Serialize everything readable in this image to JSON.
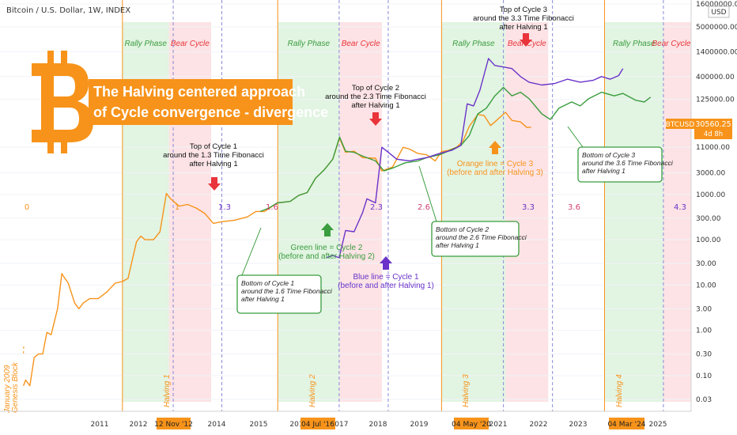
{
  "title": "Bitcoin / U.S. Dollar, 1W, INDEX",
  "headline": [
    "The Halving centered approach",
    "of Cycle convergence - divergence"
  ],
  "currency": "USD",
  "symbol": "BTCUSD",
  "last_price": "30560.25",
  "countdown": "4d 8h",
  "colors": {
    "orange": "#f7931a",
    "green": "#3a9d3f",
    "purple": "#6a32c9",
    "red": "#e8343a",
    "rally_bg": "#e2f4e2",
    "bear_bg": "#fde3e5"
  },
  "x_ticks": [
    "2011",
    "2012",
    "2014",
    "2015",
    "201",
    "2017",
    "2018",
    "2019",
    "2021",
    "2022",
    "2023",
    "2025"
  ],
  "halving_dates": [
    "12 Nov '12",
    "04 Jul '16",
    "04 May '20",
    "04 Mar '24"
  ],
  "halving_labels": [
    "Halving 1",
    "Halving 2",
    "Halving 3",
    "Halving 4"
  ],
  "genesis_label": [
    "January 2009",
    "Genesis Block"
  ],
  "phases": {
    "rally": "Rally Phase",
    "bear": "Bear Cycle"
  },
  "fib_labels": [
    "0",
    "1",
    "1.3",
    "1.6",
    "2.3",
    "2.6",
    "3.3",
    "3.6",
    "4.3"
  ],
  "annotations": {
    "top1": [
      "Top of Cycle 1",
      "around the 1.3 Time Fibonacci",
      "after Halving 1"
    ],
    "top2": [
      "Top of Cycle 2",
      "around the 2.3 Time Fibonacci",
      "after Halving 1"
    ],
    "top3": [
      "Top of Cycle 3",
      "around the 3.3 Time Fibonacci",
      "after Halving 1"
    ],
    "bottom1": [
      "Bottom of Cycle 1",
      "around the 1.6 Time Fibonacci",
      "after Halving 1"
    ],
    "bottom2": [
      "Bottom of Cycle 2",
      "around the 2.6 Time Fibonacci",
      "after Halving 1"
    ],
    "bottom3": [
      "Bottom of Cycle 3",
      "around the 3.6 Time Fibonacci",
      "after Halving 1"
    ],
    "green_line": [
      "Green line = Cycle 2",
      "(before and after Halving 2)"
    ],
    "blue_line": [
      "Blue line = Cycle 1",
      "(before and after Halving 1)"
    ],
    "orange_line": [
      "Orange line = Cycle 3",
      "(before and after Halving 3)"
    ]
  },
  "chart_data": {
    "type": "line",
    "title": "Bitcoin / U.S. Dollar, 1W, INDEX",
    "y_scale": "log",
    "ylim": [
      0.02,
      16000000
    ],
    "xlim": [
      2010.0,
      2026.2
    ],
    "y_ticks": [
      "16000000.00",
      "5000000.00",
      "1400000.00",
      "400000.00",
      "125000.00",
      "11000.00",
      "3000.00",
      "1000.00",
      "300.00",
      "100.00",
      "30.00",
      "10.00",
      "3.00",
      "1.00",
      "0.30",
      "0.10",
      "0.03"
    ],
    "series": [
      {
        "name": "Cycle 3",
        "color": "#f7931a",
        "points": [
          [
            2010.55,
            0.06
          ],
          [
            2010.6,
            0.08
          ],
          [
            2010.7,
            0.06
          ],
          [
            2010.8,
            0.25
          ],
          [
            2010.9,
            0.3
          ],
          [
            2011.0,
            0.3
          ],
          [
            2011.1,
            0.9
          ],
          [
            2011.2,
            0.8
          ],
          [
            2011.35,
            3
          ],
          [
            2011.45,
            18
          ],
          [
            2011.5,
            15
          ],
          [
            2011.6,
            11
          ],
          [
            2011.75,
            4
          ],
          [
            2011.85,
            3
          ],
          [
            2011.95,
            4
          ],
          [
            2012.1,
            5
          ],
          [
            2012.3,
            5
          ],
          [
            2012.5,
            7
          ],
          [
            2012.7,
            11
          ],
          [
            2012.87,
            12
          ],
          [
            2013.0,
            14
          ],
          [
            2013.2,
            90
          ],
          [
            2013.3,
            120
          ],
          [
            2013.4,
            100
          ],
          [
            2013.6,
            100
          ],
          [
            2013.75,
            150
          ],
          [
            2013.9,
            1050
          ],
          [
            2014.0,
            800
          ],
          [
            2014.2,
            550
          ],
          [
            2014.4,
            600
          ],
          [
            2014.6,
            500
          ],
          [
            2014.8,
            380
          ],
          [
            2015.0,
            230
          ],
          [
            2015.2,
            250
          ],
          [
            2015.5,
            270
          ],
          [
            2015.8,
            320
          ],
          [
            2016.0,
            420
          ],
          [
            2016.2,
            420
          ],
          [
            2016.5,
            650
          ],
          [
            2016.8,
            700
          ],
          [
            2017.0,
            950
          ],
          [
            2017.2,
            1100
          ],
          [
            2017.4,
            2300
          ],
          [
            2017.6,
            3500
          ],
          [
            2017.8,
            6000
          ],
          [
            2017.96,
            17500
          ],
          [
            2018.1,
            8500
          ],
          [
            2018.3,
            9000
          ],
          [
            2018.5,
            6500
          ],
          [
            2018.8,
            6300
          ],
          [
            2018.95,
            3300
          ],
          [
            2019.2,
            4000
          ],
          [
            2019.45,
            11000
          ],
          [
            2019.6,
            10000
          ],
          [
            2019.8,
            8000
          ],
          [
            2020.0,
            7500
          ],
          [
            2020.2,
            5500
          ],
          [
            2020.35,
            8800
          ],
          [
            2020.5,
            9300
          ],
          [
            2020.7,
            11000
          ],
          [
            2020.85,
            15000
          ],
          [
            2021.0,
            32000
          ],
          [
            2021.2,
            58000
          ],
          [
            2021.35,
            55000
          ],
          [
            2021.5,
            33000
          ],
          [
            2021.65,
            44000
          ],
          [
            2021.85,
            65000
          ],
          [
            2022.0,
            43000
          ],
          [
            2022.2,
            40000
          ],
          [
            2022.35,
            30000
          ],
          [
            2022.45,
            30560
          ]
        ]
      },
      {
        "name": "Cycle 2",
        "color": "#3a9d3f",
        "points": [
          [
            2016.1,
            420
          ],
          [
            2016.3,
            500
          ],
          [
            2016.5,
            650
          ],
          [
            2016.8,
            700
          ],
          [
            2017.0,
            950
          ],
          [
            2017.2,
            1100
          ],
          [
            2017.4,
            2300
          ],
          [
            2017.6,
            3500
          ],
          [
            2017.8,
            6000
          ],
          [
            2017.96,
            18500
          ],
          [
            2018.1,
            9000
          ],
          [
            2018.3,
            8500
          ],
          [
            2018.5,
            7000
          ],
          [
            2018.8,
            5500
          ],
          [
            2019.0,
            3300
          ],
          [
            2019.2,
            3800
          ],
          [
            2019.5,
            5000
          ],
          [
            2019.8,
            5500
          ],
          [
            2020.0,
            6500
          ],
          [
            2020.3,
            7500
          ],
          [
            2020.5,
            9000
          ],
          [
            2020.8,
            12000
          ],
          [
            2021.0,
            20000
          ],
          [
            2021.2,
            60000
          ],
          [
            2021.4,
            80000
          ],
          [
            2021.6,
            150000
          ],
          [
            2021.8,
            230000
          ],
          [
            2022.0,
            150000
          ],
          [
            2022.2,
            180000
          ],
          [
            2022.4,
            130000
          ],
          [
            2022.7,
            60000
          ],
          [
            2022.9,
            45000
          ],
          [
            2023.1,
            80000
          ],
          [
            2023.4,
            110000
          ],
          [
            2023.6,
            90000
          ],
          [
            2023.8,
            130000
          ],
          [
            2024.1,
            180000
          ],
          [
            2024.4,
            150000
          ],
          [
            2024.6,
            170000
          ],
          [
            2024.9,
            120000
          ],
          [
            2025.1,
            110000
          ],
          [
            2025.25,
            140000
          ]
        ]
      },
      {
        "name": "Cycle 1",
        "color": "#6a32c9",
        "points": [
          [
            2017.65,
            40
          ],
          [
            2017.8,
            45
          ],
          [
            2017.95,
            40
          ],
          [
            2018.1,
            160
          ],
          [
            2018.3,
            150
          ],
          [
            2018.5,
            400
          ],
          [
            2018.6,
            800
          ],
          [
            2018.8,
            650
          ],
          [
            2018.95,
            11000
          ],
          [
            2019.1,
            8500
          ],
          [
            2019.3,
            6000
          ],
          [
            2019.6,
            5500
          ],
          [
            2019.8,
            6000
          ],
          [
            2020.0,
            6500
          ],
          [
            2020.3,
            8000
          ],
          [
            2020.6,
            9500
          ],
          [
            2020.8,
            12000
          ],
          [
            2020.95,
            100000
          ],
          [
            2021.1,
            90000
          ],
          [
            2021.25,
            200000
          ],
          [
            2021.45,
            1000000
          ],
          [
            2021.6,
            700000
          ],
          [
            2021.8,
            650000
          ],
          [
            2022.0,
            600000
          ],
          [
            2022.2,
            400000
          ],
          [
            2022.4,
            300000
          ],
          [
            2022.7,
            260000
          ],
          [
            2023.0,
            280000
          ],
          [
            2023.3,
            350000
          ],
          [
            2023.6,
            300000
          ],
          [
            2023.9,
            330000
          ],
          [
            2024.1,
            400000
          ],
          [
            2024.3,
            350000
          ],
          [
            2024.5,
            420000
          ],
          [
            2024.6,
            600000
          ]
        ]
      }
    ]
  }
}
